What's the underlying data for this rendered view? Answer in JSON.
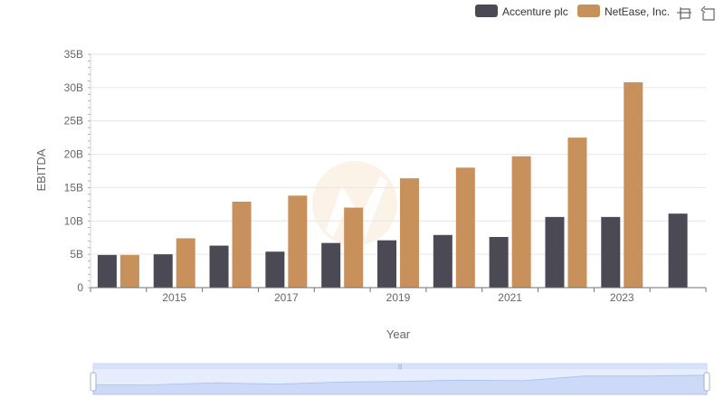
{
  "chart_data": {
    "type": "bar",
    "title": "",
    "xlabel": "Year",
    "ylabel": "EBITDA",
    "ylim": [
      0,
      35
    ],
    "y_unit_suffix": "B",
    "yticks": [
      0,
      5,
      10,
      15,
      20,
      25,
      30,
      35
    ],
    "ytick_labels": [
      "0",
      "5B",
      "10B",
      "15B",
      "20B",
      "25B",
      "30B",
      "35B"
    ],
    "categories": [
      "2014",
      "2015",
      "2016",
      "2017",
      "2018",
      "2019",
      "2020",
      "2021",
      "2022",
      "2023",
      "2024"
    ],
    "xtick_labels": [
      "2015",
      "2017",
      "2019",
      "2021",
      "2023"
    ],
    "legend_position": "top-right",
    "series": [
      {
        "name": "Accenture plc",
        "color": "#4a4954",
        "values": [
          4.9,
          5.0,
          6.3,
          5.4,
          6.7,
          7.1,
          7.9,
          7.6,
          10.6,
          10.6,
          11.1
        ]
      },
      {
        "name": "NetEase, Inc.",
        "color": "#c8905a",
        "values": [
          4.9,
          7.4,
          12.9,
          13.8,
          12.0,
          16.4,
          18.0,
          19.7,
          22.5,
          30.8,
          null
        ]
      }
    ]
  },
  "toolbox": {
    "zoom_icon": "zoom-icon",
    "restore_icon": "restore-icon"
  },
  "colors": {
    "grid": "#e6e6e6",
    "axis": "#6e7079",
    "slider_fill": "#d6e2fb",
    "slider_border": "#c5d2ec"
  }
}
